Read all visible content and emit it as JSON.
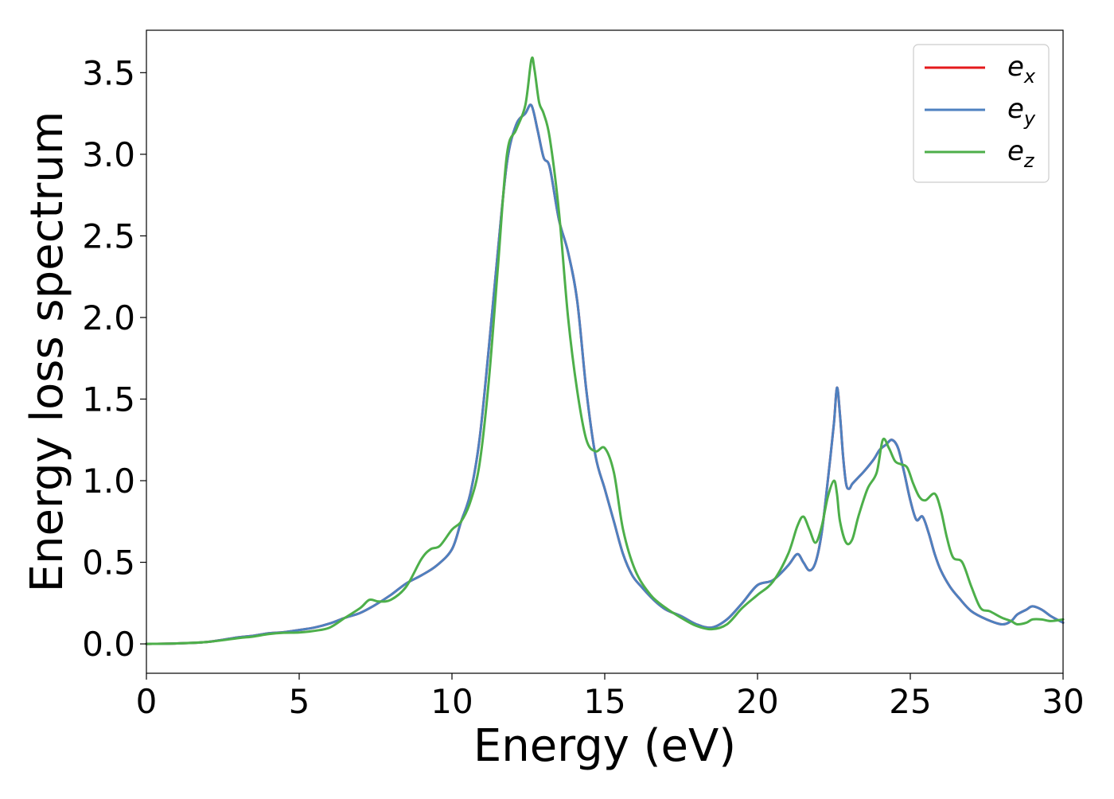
{
  "chart_data": {
    "type": "line",
    "title": "",
    "xlabel": "Energy (eV)",
    "ylabel": "Energy loss spectrum",
    "xlim": [
      0,
      30
    ],
    "ylim": [
      -0.18,
      3.76
    ],
    "xticks": [
      0,
      5,
      10,
      15,
      20,
      25,
      30
    ],
    "yticks": [
      0.0,
      0.5,
      1.0,
      1.5,
      2.0,
      2.5,
      3.0,
      3.5
    ],
    "xtick_labels": [
      "0",
      "5",
      "10",
      "15",
      "20",
      "25",
      "30"
    ],
    "ytick_labels": [
      "0.0",
      "0.5",
      "1.0",
      "1.5",
      "2.0",
      "2.5",
      "3.0",
      "3.5"
    ],
    "grid": false,
    "legend_position": "top-right",
    "series": [
      {
        "name": "e_x",
        "legend_base": "e",
        "legend_sub": "x",
        "color": "#e41a1c",
        "x": [
          0,
          1,
          2,
          3,
          3.5,
          4,
          4.5,
          5,
          5.5,
          6,
          6.5,
          7,
          7.5,
          8,
          8.5,
          9,
          9.5,
          10,
          10.3,
          10.6,
          10.9,
          11.2,
          11.5,
          11.8,
          12.1,
          12.4,
          12.6,
          12.8,
          13,
          13.2,
          13.5,
          13.8,
          14.1,
          14.4,
          14.7,
          15,
          15.3,
          15.6,
          15.9,
          16.2,
          16.6,
          17,
          17.5,
          18,
          18.5,
          19,
          19.5,
          20,
          20.5,
          21,
          21.3,
          21.5,
          21.7,
          21.9,
          22.1,
          22.3,
          22.5,
          22.6,
          22.7,
          22.8,
          22.9,
          23,
          23.1,
          23.3,
          23.5,
          23.8,
          24,
          24.2,
          24.4,
          24.6,
          24.8,
          25,
          25.2,
          25.4,
          25.6,
          25.8,
          26,
          26.3,
          26.6,
          27,
          27.5,
          28,
          28.3,
          28.5,
          28.8,
          29,
          29.3,
          29.6,
          30
        ],
        "y": [
          0,
          0.003,
          0.012,
          0.04,
          0.05,
          0.065,
          0.072,
          0.085,
          0.1,
          0.125,
          0.16,
          0.19,
          0.24,
          0.3,
          0.37,
          0.42,
          0.48,
          0.58,
          0.75,
          0.92,
          1.25,
          1.8,
          2.4,
          2.95,
          3.18,
          3.25,
          3.3,
          3.15,
          2.98,
          2.92,
          2.6,
          2.4,
          2.1,
          1.55,
          1.15,
          0.95,
          0.75,
          0.55,
          0.42,
          0.35,
          0.27,
          0.21,
          0.17,
          0.12,
          0.1,
          0.15,
          0.25,
          0.36,
          0.39,
          0.48,
          0.55,
          0.5,
          0.45,
          0.5,
          0.68,
          1.0,
          1.35,
          1.57,
          1.4,
          1.15,
          0.98,
          0.95,
          0.98,
          1.02,
          1.06,
          1.13,
          1.19,
          1.22,
          1.25,
          1.2,
          1.05,
          0.88,
          0.76,
          0.78,
          0.68,
          0.55,
          0.45,
          0.35,
          0.28,
          0.2,
          0.15,
          0.12,
          0.14,
          0.18,
          0.21,
          0.23,
          0.21,
          0.17,
          0.13
        ]
      },
      {
        "name": "e_y",
        "legend_base": "e",
        "legend_sub": "y",
        "color": "#4e81c0",
        "x": [
          0,
          1,
          2,
          3,
          3.5,
          4,
          4.5,
          5,
          5.5,
          6,
          6.5,
          7,
          7.5,
          8,
          8.5,
          9,
          9.5,
          10,
          10.3,
          10.6,
          10.9,
          11.2,
          11.5,
          11.8,
          12.1,
          12.4,
          12.6,
          12.8,
          13,
          13.2,
          13.5,
          13.8,
          14.1,
          14.4,
          14.7,
          15,
          15.3,
          15.6,
          15.9,
          16.2,
          16.6,
          17,
          17.5,
          18,
          18.5,
          19,
          19.5,
          20,
          20.5,
          21,
          21.3,
          21.5,
          21.7,
          21.9,
          22.1,
          22.3,
          22.5,
          22.6,
          22.7,
          22.8,
          22.9,
          23,
          23.1,
          23.3,
          23.5,
          23.8,
          24,
          24.2,
          24.4,
          24.6,
          24.8,
          25,
          25.2,
          25.4,
          25.6,
          25.8,
          26,
          26.3,
          26.6,
          27,
          27.5,
          28,
          28.3,
          28.5,
          28.8,
          29,
          29.3,
          29.6,
          30
        ],
        "y": [
          0,
          0.003,
          0.012,
          0.04,
          0.05,
          0.065,
          0.072,
          0.085,
          0.1,
          0.125,
          0.16,
          0.19,
          0.24,
          0.3,
          0.37,
          0.42,
          0.48,
          0.58,
          0.75,
          0.92,
          1.25,
          1.8,
          2.4,
          2.95,
          3.18,
          3.25,
          3.3,
          3.15,
          2.98,
          2.92,
          2.6,
          2.4,
          2.1,
          1.55,
          1.15,
          0.95,
          0.75,
          0.55,
          0.42,
          0.35,
          0.27,
          0.21,
          0.17,
          0.12,
          0.1,
          0.15,
          0.25,
          0.36,
          0.39,
          0.48,
          0.55,
          0.5,
          0.45,
          0.5,
          0.68,
          1.0,
          1.35,
          1.57,
          1.4,
          1.15,
          0.98,
          0.95,
          0.98,
          1.02,
          1.06,
          1.13,
          1.19,
          1.22,
          1.25,
          1.2,
          1.05,
          0.88,
          0.76,
          0.78,
          0.68,
          0.55,
          0.45,
          0.35,
          0.28,
          0.2,
          0.15,
          0.12,
          0.14,
          0.18,
          0.21,
          0.23,
          0.21,
          0.17,
          0.13
        ]
      },
      {
        "name": "e_z",
        "legend_base": "e",
        "legend_sub": "z",
        "color": "#4daf4a",
        "x": [
          0,
          1,
          2,
          3,
          3.5,
          4,
          4.5,
          5,
          5.5,
          6,
          6.5,
          7,
          7.3,
          7.6,
          8,
          8.5,
          9,
          9.3,
          9.6,
          10,
          10.3,
          10.6,
          10.9,
          11.2,
          11.5,
          11.8,
          12.1,
          12.4,
          12.6,
          12.7,
          12.85,
          13,
          13.2,
          13.5,
          13.8,
          14.1,
          14.4,
          14.7,
          15,
          15.3,
          15.6,
          16,
          16.5,
          17,
          17.5,
          18,
          18.5,
          19,
          19.5,
          20,
          20.5,
          21,
          21.3,
          21.5,
          21.7,
          21.9,
          22.1,
          22.3,
          22.5,
          22.6,
          22.7,
          22.9,
          23.1,
          23.3,
          23.6,
          23.9,
          24.1,
          24.3,
          24.5,
          24.7,
          24.9,
          25.1,
          25.3,
          25.5,
          25.8,
          26,
          26.2,
          26.4,
          26.7,
          27,
          27.3,
          27.6,
          28,
          28.3,
          28.5,
          28.8,
          29,
          29.3,
          29.6,
          30
        ],
        "y": [
          0,
          0.003,
          0.012,
          0.035,
          0.045,
          0.06,
          0.068,
          0.07,
          0.08,
          0.1,
          0.16,
          0.22,
          0.27,
          0.26,
          0.27,
          0.35,
          0.52,
          0.58,
          0.6,
          0.7,
          0.75,
          0.87,
          1.1,
          1.6,
          2.3,
          3.0,
          3.15,
          3.3,
          3.58,
          3.52,
          3.32,
          3.25,
          3.1,
          2.65,
          2.0,
          1.55,
          1.25,
          1.18,
          1.2,
          1.05,
          0.7,
          0.45,
          0.3,
          0.22,
          0.16,
          0.11,
          0.09,
          0.12,
          0.22,
          0.3,
          0.38,
          0.55,
          0.72,
          0.78,
          0.7,
          0.62,
          0.72,
          0.9,
          1.0,
          0.92,
          0.75,
          0.62,
          0.64,
          0.78,
          0.95,
          1.05,
          1.25,
          1.2,
          1.12,
          1.1,
          1.08,
          0.98,
          0.9,
          0.88,
          0.92,
          0.82,
          0.65,
          0.53,
          0.5,
          0.35,
          0.22,
          0.2,
          0.16,
          0.14,
          0.12,
          0.13,
          0.15,
          0.15,
          0.14,
          0.15
        ]
      }
    ]
  }
}
